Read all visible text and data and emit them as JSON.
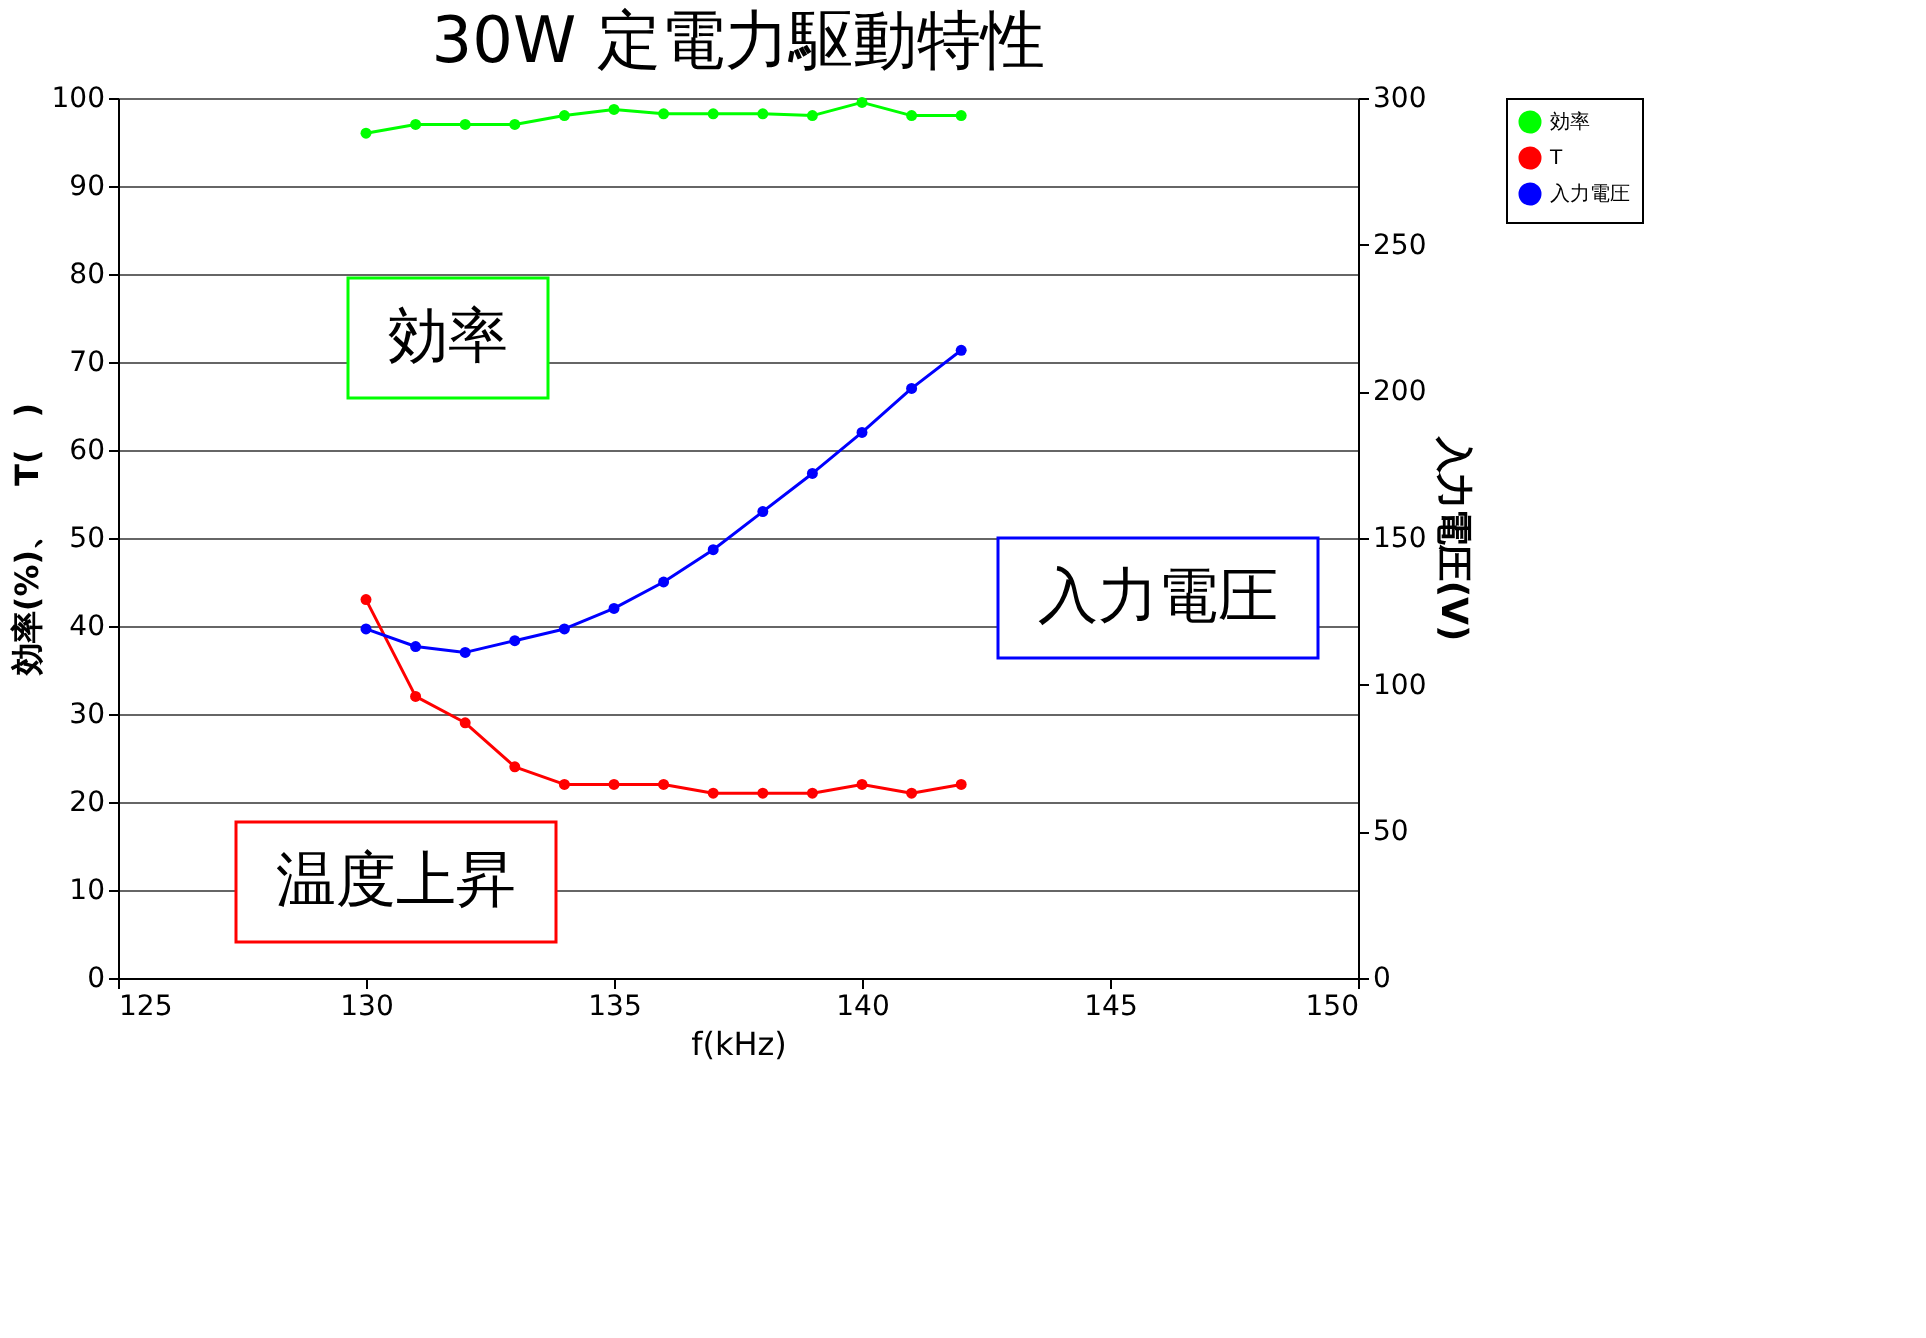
{
  "chart_data": {
    "type": "line",
    "title": "30W 定電力駆動特性",
    "xlabel": "f(kHz)",
    "ylabel": "効率(%)、　T(　)",
    "y2label": "入力電圧(V)",
    "x": [
      130,
      131,
      132,
      133,
      134,
      135,
      136,
      137,
      138,
      139,
      140,
      141,
      142
    ],
    "series": [
      {
        "name": "効率",
        "color": "#00ff00",
        "values": [
          96,
          97,
          97,
          97,
          98,
          98.7,
          98.2,
          98.2,
          98.2,
          98,
          99.5,
          98,
          98
        ]
      },
      {
        "name": "T",
        "color": "#ff0000",
        "values": [
          43,
          32,
          29,
          24,
          22,
          22,
          22,
          21,
          21,
          21,
          22,
          21,
          22
        ]
      },
      {
        "name": "入力電圧",
        "color": "#0000ff",
        "axis": "y2",
        "values": [
          119,
          113,
          111,
          115,
          119,
          126,
          135,
          146,
          159,
          172,
          186,
          201,
          214
        ]
      }
    ],
    "xlim": [
      125,
      150
    ],
    "xticks": [
      125,
      130,
      135,
      140,
      145,
      150
    ],
    "ylim": [
      0,
      100
    ],
    "yticks": [
      0,
      10,
      20,
      30,
      40,
      50,
      60,
      70,
      80,
      90,
      100
    ],
    "y2lim": [
      0,
      300
    ],
    "y2ticks": [
      0,
      50,
      100,
      150,
      200,
      250,
      300
    ],
    "annotations": [
      "効率",
      "温度上昇",
      "入力電圧"
    ],
    "grid": "y",
    "legend": "right",
    "marker": "circle",
    "line_style": "solid"
  }
}
